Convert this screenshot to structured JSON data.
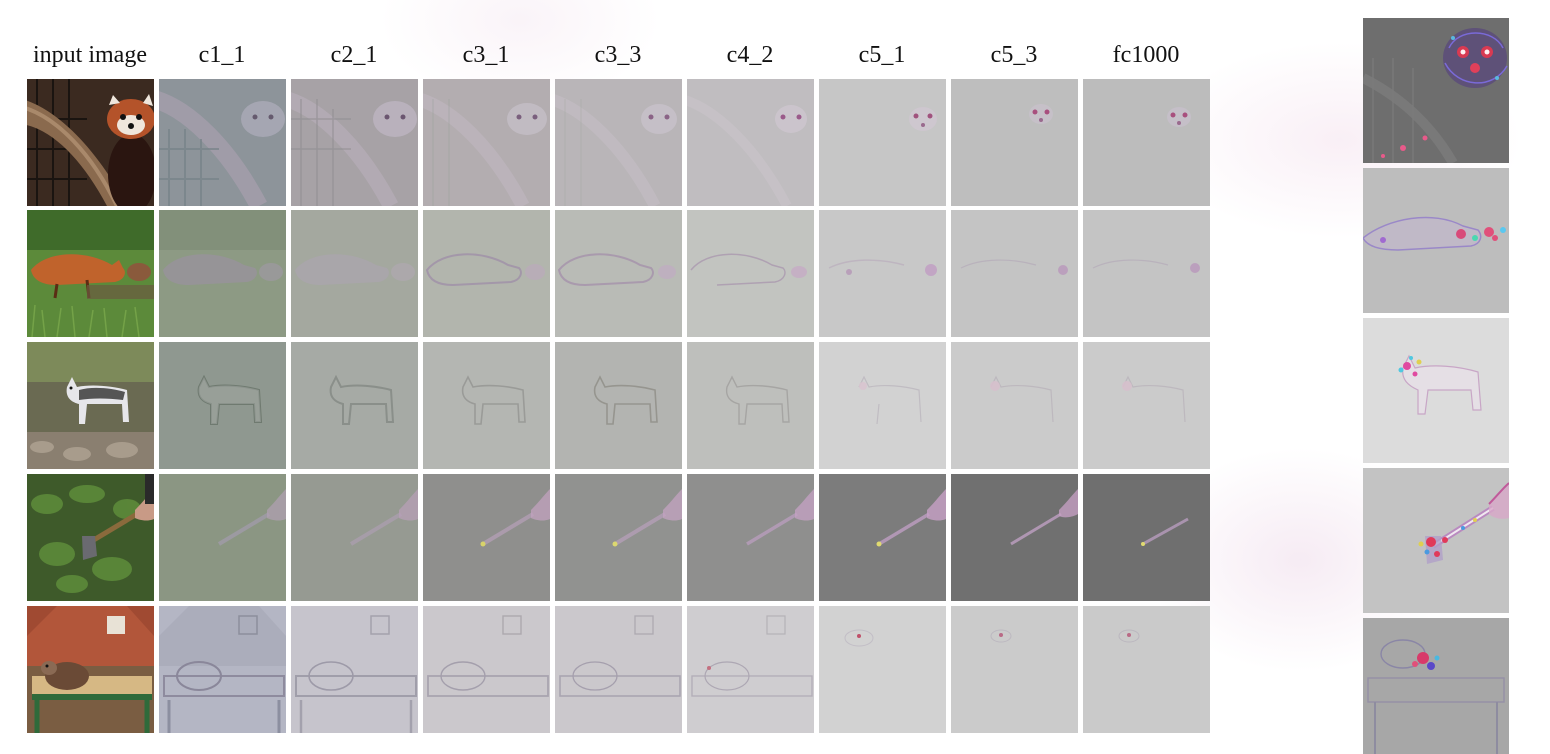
{
  "figure": {
    "column_headers": [
      "input image",
      "c1_1",
      "c2_1",
      "c3_1",
      "c3_3",
      "c4_2",
      "c5_1",
      "c5_3",
      "fc1000"
    ],
    "rows": [
      {
        "subject": "red-panda",
        "base_shades": [
          "#8a9098",
          "#a7a2a6",
          "#b3adb0",
          "#b9b5b8",
          "#c0bdc0",
          "#c6c6c6",
          "#bebebe",
          "#bcbcbc"
        ]
      },
      {
        "subject": "fox",
        "base_shades": [
          "#8d9a84",
          "#a4a89f",
          "#b2b5ad",
          "#b9bbb6",
          "#c2c4c0",
          "#c8c8c8",
          "#c4c4c4",
          "#c4c4c4"
        ]
      },
      {
        "subject": "husky",
        "base_shades": [
          "#8f9890",
          "#a6aaa5",
          "#b4b6b2",
          "#b3b4b1",
          "#bebfbc",
          "#d2d2d2",
          "#cbcbcb",
          "#cbcbcb"
        ]
      },
      {
        "subject": "axe-in-forest",
        "base_shades": [
          "#8b9683",
          "#969a92",
          "#8f8f8d",
          "#919290",
          "#8f8f8e",
          "#7c7c7c",
          "#707070",
          "#6f6f6f"
        ]
      },
      {
        "subject": "mouse-in-trap",
        "base_shades": [
          "#b4b6c4",
          "#c6c4cc",
          "#cbc8cc",
          "#cbc8cc",
          "#cfcdd0",
          "#d2d2d2",
          "#cbcbcb",
          "#cacaca"
        ]
      }
    ],
    "side_column": [
      {
        "subject": "red-panda-detail",
        "base_shade": "#6e6e6e"
      },
      {
        "subject": "fox-detail",
        "base_shade": "#bdbdbd"
      },
      {
        "subject": "husky-detail",
        "base_shade": "#dcdcdc"
      },
      {
        "subject": "axe-detail",
        "base_shade": "#c3c3c3"
      },
      {
        "subject": "mouse-detail",
        "base_shade": "#a7a7a7"
      }
    ]
  }
}
